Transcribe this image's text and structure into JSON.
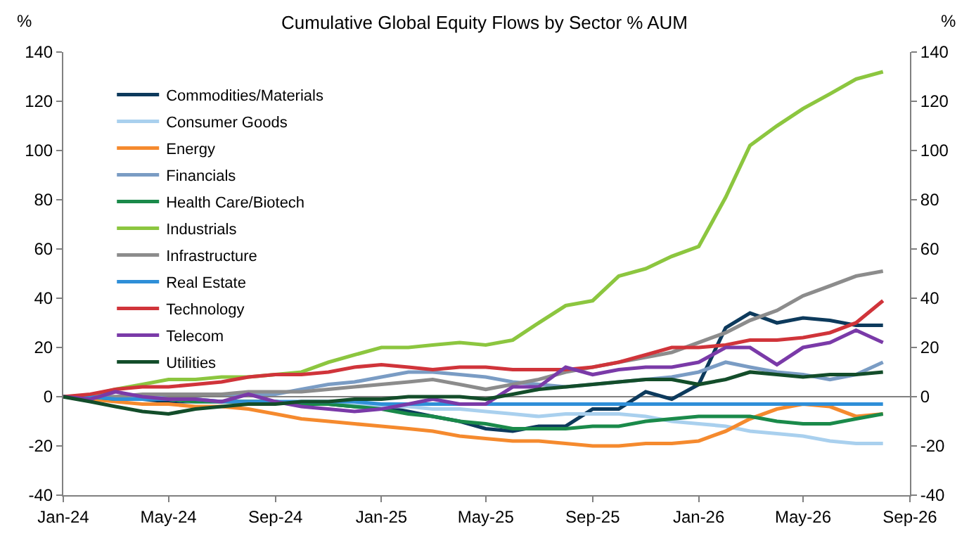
{
  "chart_data": {
    "type": "line",
    "title": "Cumulative Global Equity Flows by Sector % AUM",
    "ylabel": "%",
    "y2label": "%",
    "x": [
      "2024-01",
      "2024-02",
      "2024-03",
      "2024-04",
      "2024-05",
      "2024-06",
      "2024-07",
      "2024-08",
      "2024-09",
      "2024-10",
      "2024-11",
      "2024-12",
      "2025-01",
      "2025-02",
      "2025-03",
      "2025-04",
      "2025-05",
      "2025-06",
      "2025-07",
      "2025-08",
      "2025-09",
      "2025-10",
      "2025-11",
      "2025-12",
      "2026-01",
      "2026-02",
      "2026-03",
      "2026-04",
      "2026-05",
      "2026-06",
      "2026-07",
      "2026-08"
    ],
    "series": [
      {
        "name": "Commodities/Materials",
        "color": "#0d3a5c",
        "values": [
          0,
          0,
          -1,
          -1,
          -2,
          -2,
          -2,
          -2,
          -2,
          -3,
          -3,
          -4,
          -4,
          -6,
          -8,
          -10,
          -13,
          -14,
          -12,
          -12,
          -5,
          -5,
          2,
          -1,
          5,
          28,
          34,
          30,
          32,
          31,
          29,
          29
        ]
      },
      {
        "name": "Consumer Goods",
        "color": "#a9d0ee",
        "values": [
          0,
          0,
          -1,
          -1,
          -1,
          -2,
          -2,
          -2,
          -2,
          -3,
          -3,
          -3,
          -4,
          -4,
          -5,
          -5,
          -6,
          -7,
          -8,
          -7,
          -7,
          -7,
          -8,
          -10,
          -11,
          -12,
          -14,
          -15,
          -16,
          -18,
          -19,
          -19
        ]
      },
      {
        "name": "Energy",
        "color": "#f58a2e",
        "values": [
          0,
          -1,
          -2,
          -3,
          -3,
          -4,
          -4,
          -5,
          -7,
          -9,
          -10,
          -11,
          -12,
          -13,
          -14,
          -16,
          -17,
          -18,
          -18,
          -19,
          -20,
          -20,
          -19,
          -19,
          -18,
          -14,
          -9,
          -5,
          -3,
          -4,
          -8,
          -7
        ]
      },
      {
        "name": "Financials",
        "color": "#7a9cc4",
        "values": [
          0,
          0,
          0,
          0,
          1,
          1,
          1,
          1,
          1,
          3,
          5,
          6,
          8,
          10,
          10,
          9,
          8,
          6,
          5,
          4,
          5,
          6,
          7,
          8,
          10,
          14,
          12,
          10,
          9,
          7,
          9,
          14
        ]
      },
      {
        "name": "Health Care/Biotech",
        "color": "#1a8a4a",
        "values": [
          0,
          0,
          -1,
          -1,
          -1,
          -2,
          -2,
          -2,
          -2,
          -3,
          -3,
          -4,
          -5,
          -7,
          -8,
          -10,
          -11,
          -13,
          -13,
          -13,
          -12,
          -12,
          -10,
          -9,
          -8,
          -8,
          -8,
          -10,
          -11,
          -11,
          -9,
          -7
        ]
      },
      {
        "name": "Industrials",
        "color": "#8cc63f",
        "values": [
          0,
          0.5,
          3,
          5,
          7,
          7,
          8,
          8,
          9,
          10,
          14,
          17,
          20,
          20,
          21,
          22,
          21,
          23,
          30,
          37,
          39,
          49,
          52,
          57,
          61,
          81,
          102,
          110,
          117,
          123,
          129,
          132
        ]
      },
      {
        "name": "Infrastructure",
        "color": "#8c8c8c",
        "values": [
          0,
          0,
          0,
          1,
          1,
          1,
          1,
          2,
          2,
          2,
          3,
          4,
          5,
          6,
          7,
          5,
          3,
          5,
          7,
          10,
          12,
          14,
          16,
          18,
          22,
          26,
          31,
          35,
          41,
          45,
          49,
          51
        ]
      },
      {
        "name": "Real Estate",
        "color": "#2f8fd8",
        "values": [
          0,
          0,
          -1,
          -1,
          -1,
          -1,
          -2,
          -2,
          -2,
          -2,
          -2,
          -2,
          -3,
          -3,
          -3,
          -3,
          -3,
          -3,
          -3,
          -3,
          -3,
          -3,
          -3,
          -3,
          -3,
          -3,
          -3,
          -3,
          -3,
          -3,
          -3,
          -3
        ]
      },
      {
        "name": "Technology",
        "color": "#d0343a",
        "values": [
          0,
          1,
          3,
          4,
          4,
          5,
          6,
          8,
          9,
          9,
          10,
          12,
          13,
          12,
          11,
          12,
          12,
          11,
          11,
          11,
          12,
          14,
          17,
          20,
          20,
          21,
          23,
          23,
          24,
          26,
          30,
          39
        ]
      },
      {
        "name": "Telecom",
        "color": "#7a3aa8",
        "values": [
          0,
          -1,
          2,
          0,
          -1,
          -1,
          -2,
          1,
          -2,
          -4,
          -5,
          -6,
          -5,
          -3,
          -1,
          -3,
          -3,
          4,
          4,
          12,
          9,
          11,
          12,
          12,
          14,
          20,
          20,
          13,
          20,
          22,
          27,
          22
        ]
      },
      {
        "name": "Utilities",
        "color": "#134d2a",
        "values": [
          0,
          -2,
          -4,
          -6,
          -7,
          -5,
          -4,
          -3,
          -3,
          -2,
          -2,
          -1,
          -1,
          0,
          0,
          0,
          -1,
          1,
          3,
          4,
          5,
          6,
          7,
          7,
          5,
          7,
          10,
          9,
          8,
          9,
          9,
          10
        ]
      }
    ],
    "xlim": [
      "2024-01",
      "2026-09"
    ],
    "xticks": [
      {
        "value": "2024-01",
        "label": "Jan-24"
      },
      {
        "value": "2024-05",
        "label": "May-24"
      },
      {
        "value": "2024-09",
        "label": "Sep-24"
      },
      {
        "value": "2025-01",
        "label": "Jan-25"
      },
      {
        "value": "2025-05",
        "label": "May-25"
      },
      {
        "value": "2025-09",
        "label": "Sep-25"
      },
      {
        "value": "2026-01",
        "label": "Jan-26"
      },
      {
        "value": "2026-05",
        "label": "May-26"
      },
      {
        "value": "2026-09",
        "label": "Sep-26"
      }
    ],
    "ylim": [
      -40,
      140
    ],
    "yticks": [
      -40,
      -20,
      0,
      20,
      40,
      60,
      80,
      100,
      120,
      140
    ],
    "y2lim": [
      -40,
      140
    ],
    "y2ticks": [
      -40,
      -20,
      0,
      20,
      40,
      60,
      80,
      100,
      120,
      140
    ],
    "ref_lines": [
      {
        "axis": "y",
        "value": 0,
        "color": "#808080"
      }
    ],
    "legend": "top left",
    "grid": false,
    "marker": "none",
    "line_style": "solid"
  }
}
